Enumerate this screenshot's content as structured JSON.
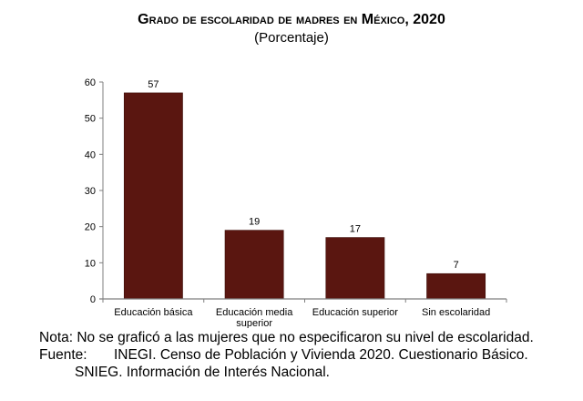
{
  "chart_data": {
    "type": "bar",
    "title": "Grado de escolaridad de madres en México, 2020",
    "subtitle": "(Porcentaje)",
    "categories": [
      [
        "Educación básica"
      ],
      [
        "Educación media",
        "superior"
      ],
      [
        "Educación superior"
      ],
      [
        "Sin escolaridad"
      ]
    ],
    "values": [
      57,
      19,
      17,
      7
    ],
    "data_labels": [
      "57",
      "19",
      "17",
      "7"
    ],
    "ylim": [
      0,
      60
    ],
    "yticks": [
      0,
      10,
      20,
      30,
      40,
      50,
      60
    ],
    "xlabel": "",
    "ylabel": "",
    "grid": false,
    "bar_color": "#5a1610"
  },
  "notes": {
    "nota": "Nota: No se graficó a las mujeres que no especificaron su nivel de escolaridad.",
    "fuente_label": "Fuente:",
    "fuente_text": "INEGI. Censo de Población y Vivienda 2020. Cuestionario Básico.",
    "fuente_text2": "SNIEG. Información de Interés Nacional."
  }
}
